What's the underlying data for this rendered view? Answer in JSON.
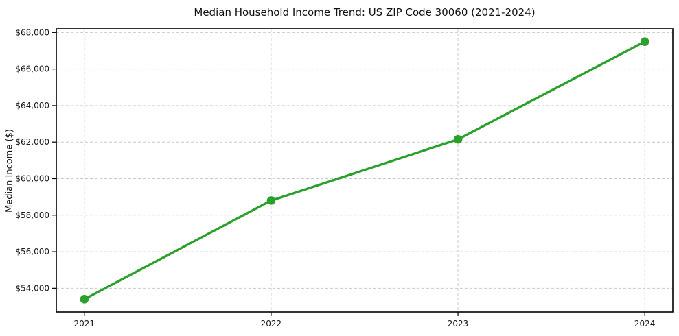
{
  "chart_data": {
    "type": "line",
    "title": "Median Household Income Trend: US ZIP Code 30060 (2021-2024)",
    "xlabel": "",
    "ylabel": "Median Income ($)",
    "x": [
      2021,
      2022,
      2023,
      2024
    ],
    "x_labels": [
      "2021",
      "2022",
      "2023",
      "2024"
    ],
    "series": [
      {
        "name": "Median Household Income",
        "values": [
          53400,
          58800,
          62150,
          67500
        ]
      }
    ],
    "ytick_values": [
      54000,
      56000,
      58000,
      60000,
      62000,
      64000,
      66000,
      68000
    ],
    "ytick_labels": [
      "$54,000",
      "$56,000",
      "$58,000",
      "$60,000",
      "$62,000",
      "$64,000",
      "$66,000",
      "$68,000"
    ],
    "ylim": [
      52700,
      68200
    ],
    "xlim": [
      2020.85,
      2024.15
    ],
    "grid": true,
    "grid_style": "dashed",
    "legend": false,
    "colors": {
      "line": "#2ca02c",
      "marker": "#2ca02c",
      "grid": "#c9c9c9",
      "axis": "#000000",
      "text": "#1a1a1a",
      "background": "#ffffff"
    }
  }
}
